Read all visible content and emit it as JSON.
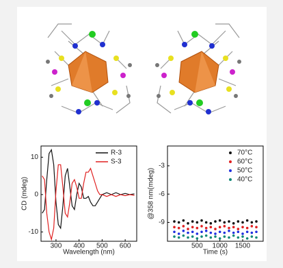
{
  "chart_data": [
    {
      "type": "line",
      "x": [
        240,
        250,
        260,
        270,
        280,
        290,
        300,
        310,
        320,
        330,
        340,
        350,
        360,
        370,
        380,
        390,
        400,
        410,
        420,
        430,
        440,
        450,
        460,
        470,
        480,
        490,
        500,
        520,
        540,
        560,
        580,
        600,
        620,
        640
      ],
      "series": [
        {
          "name": "R-3",
          "color": "#111111",
          "values": [
            -5,
            -4,
            4,
            11,
            12,
            8,
            -2,
            -8,
            -9,
            -3,
            5,
            7,
            2,
            -3,
            -4,
            0,
            3,
            2,
            -1,
            -1,
            -0.5,
            -2,
            -3,
            -3,
            -2,
            -1,
            0,
            0.5,
            0,
            0.5,
            0,
            0.3,
            0,
            0.2
          ]
        },
        {
          "name": "S-3",
          "color": "#e02020",
          "values": [
            5,
            4,
            -5,
            -10,
            -12,
            -9,
            1,
            8,
            8,
            2,
            -5,
            -6,
            -2,
            3,
            4,
            2,
            -1,
            -1,
            3,
            6,
            6,
            7,
            5,
            3,
            1,
            0,
            0,
            -0.5,
            0,
            -0.5,
            0,
            -0.3,
            0,
            -0.2
          ]
        }
      ],
      "xlim": [
        235,
        650
      ],
      "xticks": [
        300,
        400,
        500,
        600
      ],
      "ylim": [
        -12.5,
        13
      ],
      "yticks": [
        -10,
        0,
        10
      ],
      "xlabel": "Wavelength (nm)",
      "ylabel": "CD (mdeg)"
    },
    {
      "type": "scatter",
      "x": [
        0,
        100,
        200,
        300,
        400,
        500,
        600,
        700,
        800,
        900,
        1000,
        1100,
        1200,
        1300,
        1400,
        1500,
        1600,
        1700,
        1800
      ],
      "series": [
        {
          "name": "70°C",
          "color": "#111111",
          "values": [
            -8.9,
            -9.0,
            -8.8,
            -9.1,
            -8.9,
            -9.0,
            -8.8,
            -9.0,
            -9.1,
            -8.9,
            -8.8,
            -9.0,
            -8.9,
            -9.1,
            -8.9,
            -9.0,
            -8.8,
            -9.0,
            -8.9
          ]
        },
        {
          "name": "60°C",
          "color": "#e02020",
          "values": [
            -9.5,
            -9.6,
            -9.4,
            -9.7,
            -9.5,
            -9.6,
            -9.4,
            -9.6,
            -9.5,
            -9.7,
            -9.5,
            -9.4,
            -9.6,
            -9.5,
            -9.7,
            -9.5,
            -9.6,
            -9.4,
            -9.5
          ]
        },
        {
          "name": "50°C",
          "color": "#2030e0",
          "values": [
            -10.0,
            -10.2,
            -9.9,
            -10.1,
            -10.0,
            -10.2,
            -10.0,
            -9.9,
            -10.1,
            -10.2,
            -10.0,
            -10.1,
            -9.9,
            -10.1,
            -10.0,
            -10.2,
            -10.0,
            -10.1,
            -10.0
          ]
        },
        {
          "name": "40°C",
          "color": "#118877",
          "values": [
            -10.5,
            -10.6,
            -10.4,
            -10.6,
            -10.5,
            -10.7,
            -10.5,
            -10.4,
            -10.6,
            -10.5,
            -10.7,
            -10.5,
            -10.6,
            -10.4,
            -10.6,
            -10.5,
            -10.7,
            -10.5,
            -10.6
          ]
        }
      ],
      "xlim": [
        -150,
        1950
      ],
      "xticks": [
        500,
        1000,
        1500
      ],
      "ylim": [
        -11,
        -0.9
      ],
      "yticks": [
        -3,
        -6,
        -9
      ],
      "xlabel": "Time (s)",
      "ylabel": "@358 nm(mdeg)"
    }
  ]
}
